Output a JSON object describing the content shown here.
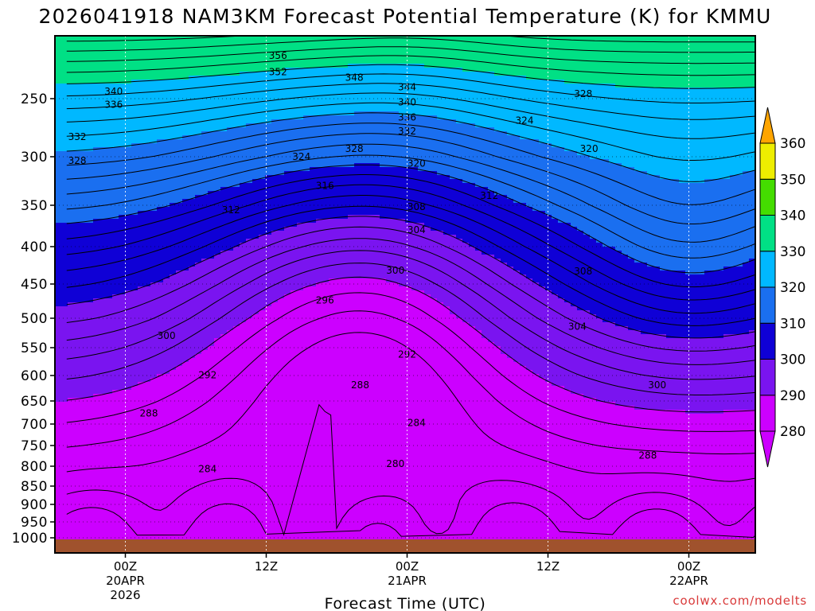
{
  "chart_data": {
    "type": "heatmap",
    "title": "2026041918 NAM3KM Forecast Potential Temperature (K) for KMMU",
    "xlabel": "Forecast Time (UTC)",
    "ylabel": "",
    "credit": "coolwx.com/modelts",
    "x_range_hours": [
      -5,
      55
    ],
    "x_ticks": [
      {
        "hour": 0,
        "lines": [
          "00Z",
          "20APR",
          "2026"
        ]
      },
      {
        "hour": 12,
        "lines": [
          "12Z"
        ]
      },
      {
        "hour": 24,
        "lines": [
          "00Z",
          "21APR"
        ]
      },
      {
        "hour": 36,
        "lines": [
          "12Z"
        ]
      },
      {
        "hour": 48,
        "lines": [
          "00Z",
          "22APR"
        ]
      }
    ],
    "y_range_hpa": [
      200,
      1020
    ],
    "y_ticks": [
      250,
      300,
      350,
      400,
      450,
      500,
      550,
      600,
      650,
      700,
      750,
      800,
      850,
      900,
      950,
      1000
    ],
    "colorbar": {
      "levels": [
        280,
        290,
        300,
        310,
        320,
        330,
        340,
        350,
        360
      ],
      "colors": [
        "#cc00ff",
        "#7a14f0",
        "#0f00d6",
        "#1a6ff0",
        "#00b8ff",
        "#00e085",
        "#44dd00",
        "#eeee00",
        "#ffa500"
      ]
    },
    "contour_interval_k": 2,
    "contour_labels": [
      {
        "hour": 13,
        "hpa": 213,
        "value": "356"
      },
      {
        "hour": 13,
        "hpa": 227,
        "value": "352"
      },
      {
        "hour": 19.5,
        "hpa": 232,
        "value": "348"
      },
      {
        "hour": 24,
        "hpa": 240,
        "value": "344"
      },
      {
        "hour": -1,
        "hpa": 244,
        "value": "340"
      },
      {
        "hour": -1,
        "hpa": 255,
        "value": "336"
      },
      {
        "hour": 24,
        "hpa": 253,
        "value": "340"
      },
      {
        "hour": 24,
        "hpa": 266,
        "value": "336"
      },
      {
        "hour": 24,
        "hpa": 278,
        "value": "332"
      },
      {
        "hour": 39,
        "hpa": 246,
        "value": "328"
      },
      {
        "hour": 34,
        "hpa": 269,
        "value": "324"
      },
      {
        "hour": -4.1,
        "hpa": 283,
        "value": "332"
      },
      {
        "hour": -4.1,
        "hpa": 304,
        "value": "328"
      },
      {
        "hour": 19.5,
        "hpa": 293,
        "value": "328"
      },
      {
        "hour": 15,
        "hpa": 300,
        "value": "324"
      },
      {
        "hour": 24.8,
        "hpa": 307,
        "value": "320"
      },
      {
        "hour": 39.5,
        "hpa": 293,
        "value": "320"
      },
      {
        "hour": 17,
        "hpa": 330,
        "value": "316"
      },
      {
        "hour": 31,
        "hpa": 340,
        "value": "312"
      },
      {
        "hour": 9,
        "hpa": 356,
        "value": "312"
      },
      {
        "hour": 24.8,
        "hpa": 352,
        "value": "308"
      },
      {
        "hour": 24.8,
        "hpa": 380,
        "value": "304"
      },
      {
        "hour": 39,
        "hpa": 433,
        "value": "308"
      },
      {
        "hour": 23,
        "hpa": 432,
        "value": "300"
      },
      {
        "hour": 17,
        "hpa": 474,
        "value": "296"
      },
      {
        "hour": 38.5,
        "hpa": 514,
        "value": "304"
      },
      {
        "hour": 24,
        "hpa": 562,
        "value": "292"
      },
      {
        "hour": 3.5,
        "hpa": 530,
        "value": "300"
      },
      {
        "hour": 7,
        "hpa": 599,
        "value": "292"
      },
      {
        "hour": 20,
        "hpa": 619,
        "value": "288"
      },
      {
        "hour": 45.3,
        "hpa": 619,
        "value": "300"
      },
      {
        "hour": 24.8,
        "hpa": 697,
        "value": "284"
      },
      {
        "hour": 2,
        "hpa": 677,
        "value": "288"
      },
      {
        "hour": 44.5,
        "hpa": 774,
        "value": "288"
      },
      {
        "hour": 7,
        "hpa": 807,
        "value": "284"
      },
      {
        "hour": 23,
        "hpa": 794,
        "value": "280"
      }
    ]
  }
}
